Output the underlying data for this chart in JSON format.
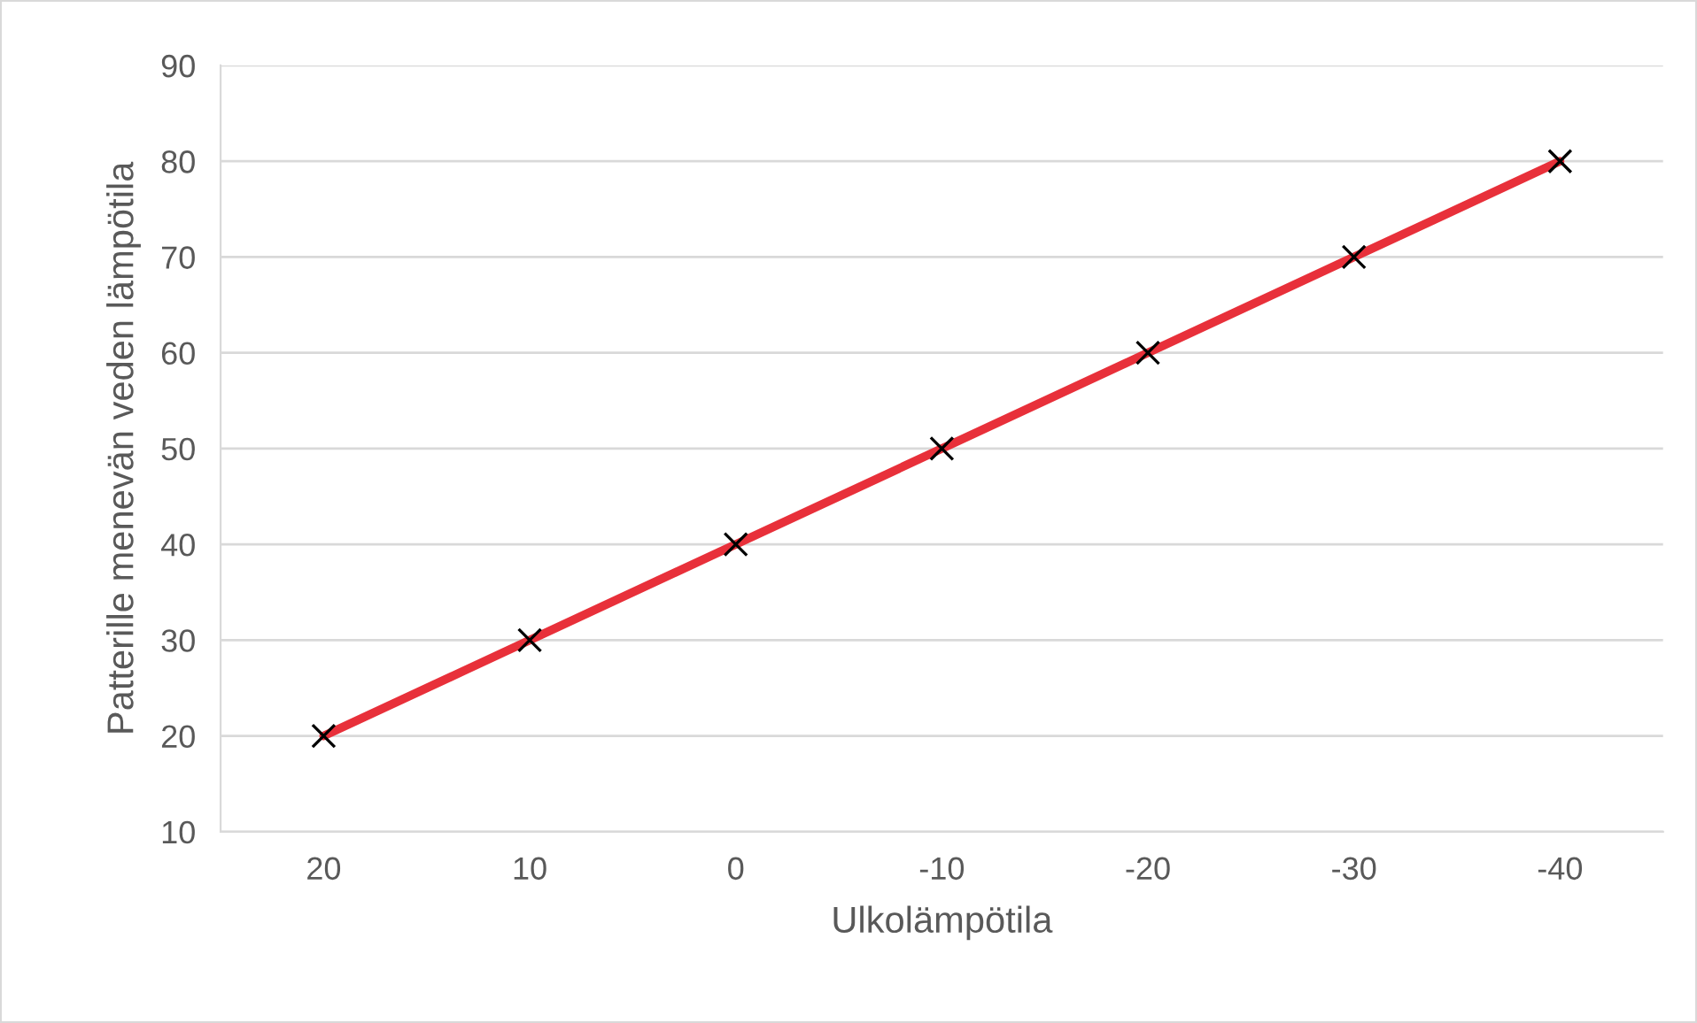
{
  "chart_data": {
    "type": "line",
    "xlabel": "Ulkolämpötila",
    "ylabel": "Patterille menevän veden lämpötila",
    "categories": [
      "20",
      "10",
      "0",
      "-10",
      "-20",
      "-30",
      "-40"
    ],
    "series": [
      {
        "values": [
          20,
          30,
          40,
          50,
          60,
          70,
          80
        ],
        "color": "#e8303a"
      }
    ],
    "ylim": [
      10,
      90
    ],
    "yticks": [
      10,
      20,
      30,
      40,
      50,
      60,
      70,
      80,
      90
    ],
    "grid": "y",
    "marker": "cross",
    "line_style": "solid"
  }
}
